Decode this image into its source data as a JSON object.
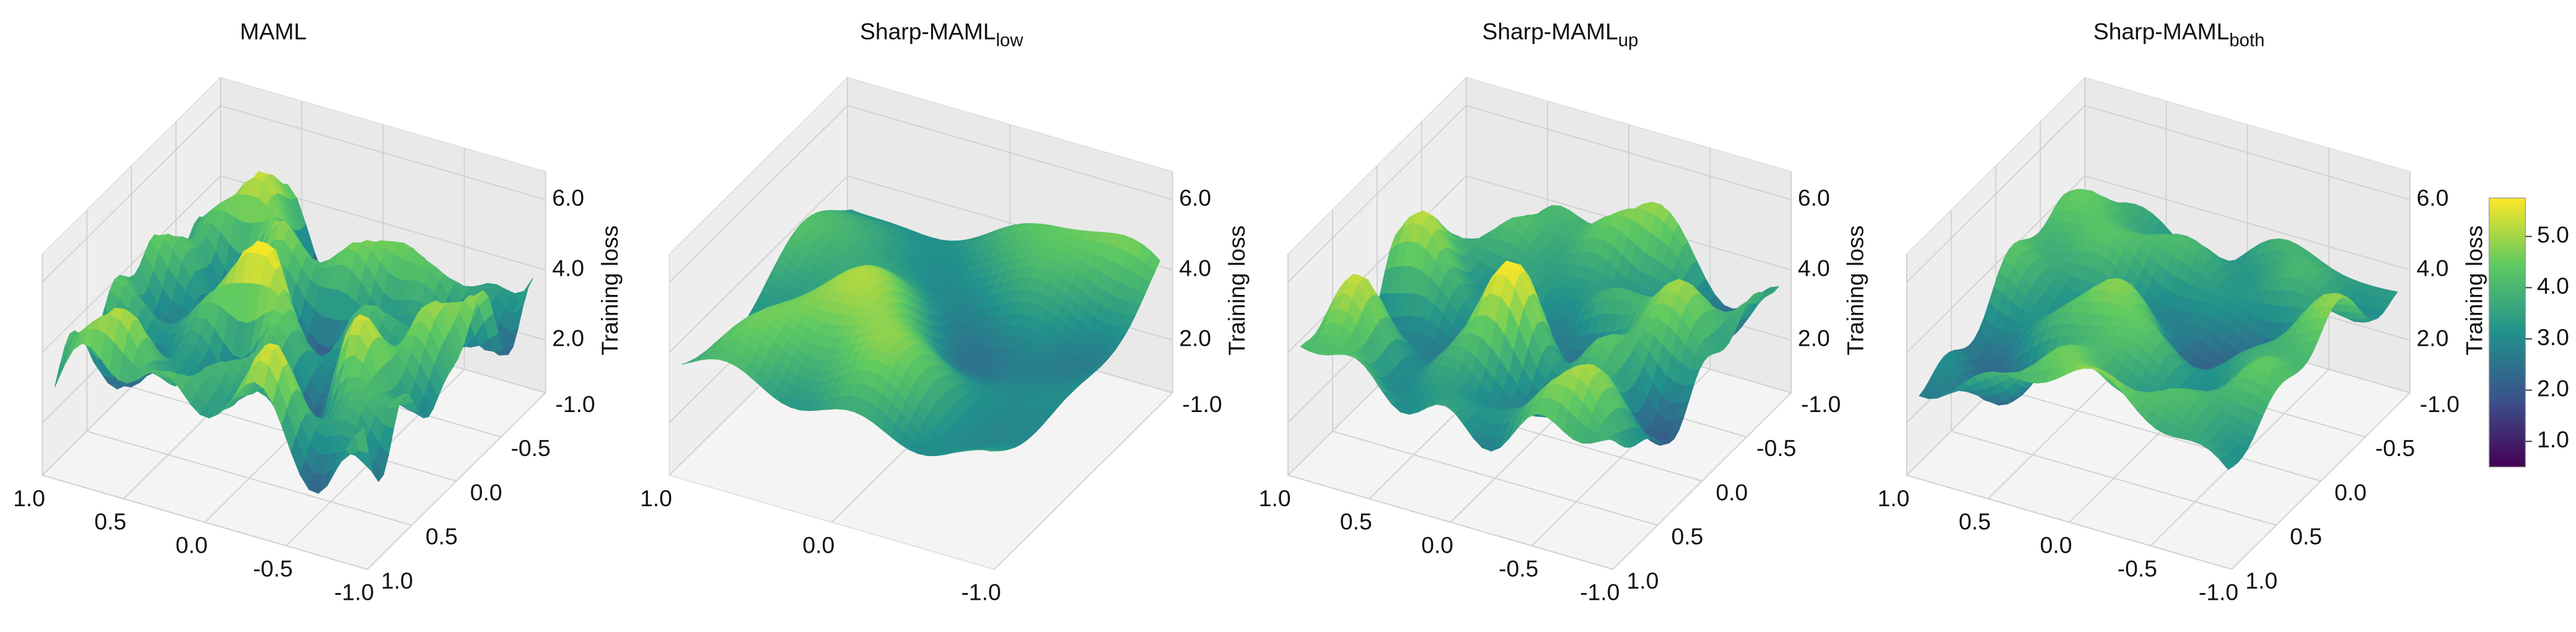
{
  "chart_data": [
    {
      "type": "surface",
      "title": "MAML",
      "zlabel": "Training loss",
      "xlim": [
        1,
        -1
      ],
      "xticks": [
        {
          "value": 1,
          "label": "1.0"
        },
        {
          "value": 0.5,
          "label": "0.5"
        },
        {
          "value": 0,
          "label": "0.0"
        },
        {
          "value": -0.5,
          "label": "-0.5"
        },
        {
          "value": -1,
          "label": "-1.0"
        }
      ],
      "ylim": [
        1,
        -1
      ],
      "yticks": [
        {
          "value": 1,
          "label": "1.0"
        },
        {
          "value": 0.5,
          "label": "0.5"
        },
        {
          "value": 0,
          "label": "0.0"
        },
        {
          "value": -0.5,
          "label": "-0.5"
        },
        {
          "value": -1,
          "label": "-1.0"
        }
      ],
      "zlim": [
        0.5,
        6.8
      ],
      "zticks": [
        {
          "value": 2,
          "label": "2.0"
        },
        {
          "value": 4,
          "label": "4.0"
        },
        {
          "value": 6,
          "label": "6.0"
        }
      ],
      "grid": true
    },
    {
      "type": "surface",
      "title": "Sharp-MAML",
      "title_subscript": "low",
      "zlabel": "Training loss",
      "xlim": [
        1,
        -1
      ],
      "xticks": [
        {
          "value": 1,
          "label": "1.0"
        },
        {
          "value": 0,
          "label": "0.0"
        },
        {
          "value": -1,
          "label": "-1.0"
        }
      ],
      "ylim": [
        1,
        -1
      ],
      "yticks": [
        {
          "value": -1,
          "label": "-1.0"
        }
      ],
      "zlim": [
        0.5,
        6.8
      ],
      "zticks": [
        {
          "value": 2,
          "label": "2.0"
        },
        {
          "value": 4,
          "label": "4.0"
        },
        {
          "value": 6,
          "label": "6.0"
        }
      ],
      "grid": true
    },
    {
      "type": "surface",
      "title": "Sharp-MAML",
      "title_subscript": "up",
      "zlabel": "Training loss",
      "xlim": [
        1,
        -1
      ],
      "xticks": [
        {
          "value": 1,
          "label": "1.0"
        },
        {
          "value": 0.5,
          "label": "0.5"
        },
        {
          "value": 0,
          "label": "0.0"
        },
        {
          "value": -0.5,
          "label": "-0.5"
        },
        {
          "value": -1,
          "label": "-1.0"
        }
      ],
      "ylim": [
        1,
        -1
      ],
      "yticks": [
        {
          "value": 1,
          "label": "1.0"
        },
        {
          "value": 0.5,
          "label": "0.5"
        },
        {
          "value": 0,
          "label": "0.0"
        },
        {
          "value": -0.5,
          "label": "-0.5"
        },
        {
          "value": -1,
          "label": "-1.0"
        }
      ],
      "zlim": [
        0.5,
        6.8
      ],
      "zticks": [
        {
          "value": 2,
          "label": "2.0"
        },
        {
          "value": 4,
          "label": "4.0"
        },
        {
          "value": 6,
          "label": "6.0"
        }
      ],
      "grid": true
    },
    {
      "type": "surface",
      "title": "Sharp-MAML",
      "title_subscript": "both",
      "zlabel": "Training loss",
      "xlim": [
        1,
        -1
      ],
      "xticks": [
        {
          "value": 1,
          "label": "1.0"
        },
        {
          "value": 0.5,
          "label": "0.5"
        },
        {
          "value": 0,
          "label": "0.0"
        },
        {
          "value": -0.5,
          "label": "-0.5"
        },
        {
          "value": -1,
          "label": "-1.0"
        }
      ],
      "ylim": [
        1,
        -1
      ],
      "yticks": [
        {
          "value": 1,
          "label": "1.0"
        },
        {
          "value": 0.5,
          "label": "0.5"
        },
        {
          "value": 0,
          "label": "0.0"
        },
        {
          "value": -0.5,
          "label": "-0.5"
        },
        {
          "value": -1,
          "label": "-1.0"
        }
      ],
      "zlim": [
        0.5,
        6.8
      ],
      "zticks": [
        {
          "value": 2,
          "label": "2.0"
        },
        {
          "value": 4,
          "label": "4.0"
        },
        {
          "value": 6,
          "label": "6.0"
        }
      ],
      "grid": true,
      "colorbar": {
        "lim": [
          0.5,
          5.75
        ],
        "ticks": [
          {
            "value": 1,
            "label": "1.0"
          },
          {
            "value": 2,
            "label": "2.0"
          },
          {
            "value": 3,
            "label": "3.0"
          },
          {
            "value": 4,
            "label": "4.0"
          },
          {
            "value": 5,
            "label": "5.0"
          }
        ]
      }
    }
  ]
}
